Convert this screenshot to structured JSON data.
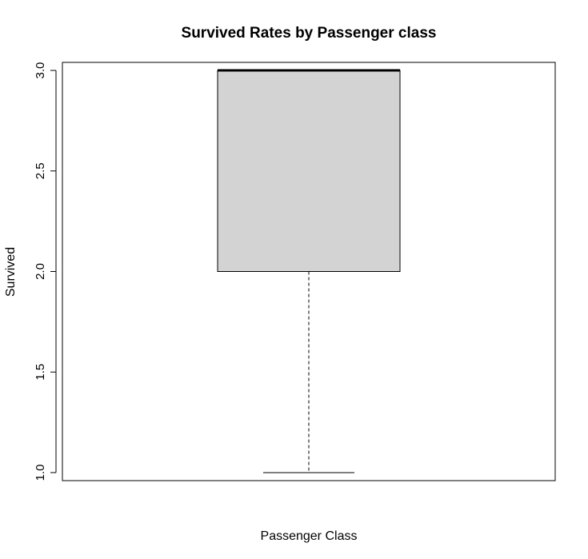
{
  "chart_data": {
    "type": "box",
    "title": "Survived Rates by Passenger class",
    "xlabel": "Passenger Class",
    "ylabel": "Survived",
    "ylim": [
      0.96,
      3.04
    ],
    "yticks": [
      1.0,
      1.5,
      2.0,
      2.5,
      3.0
    ],
    "ytick_labels": [
      "1.0",
      "1.5",
      "2.0",
      "2.5",
      "3.0"
    ],
    "grid": false,
    "box": {
      "whisker_low": 1.0,
      "q1": 2.0,
      "median": 3.0,
      "q3": 3.0,
      "whisker_high": 3.0,
      "fill": "#d3d3d3"
    }
  }
}
